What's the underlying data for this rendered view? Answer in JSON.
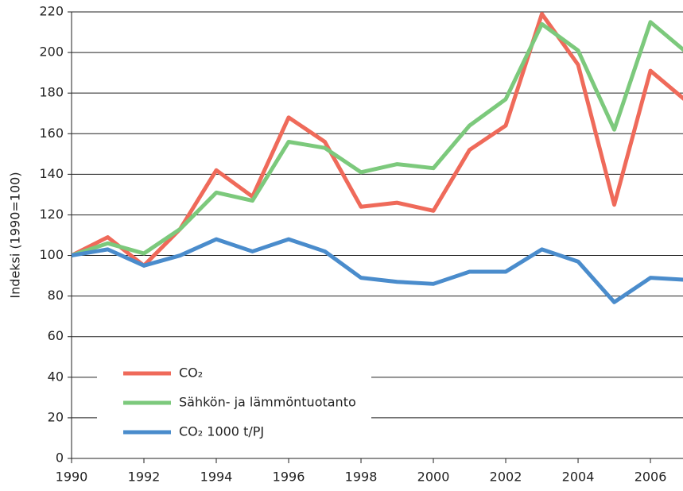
{
  "chart_data": {
    "type": "line",
    "y_label": "Indeksi (1990=100)",
    "x": [
      1990,
      1991,
      1992,
      1993,
      1994,
      1995,
      1996,
      1997,
      1998,
      1999,
      2000,
      2001,
      2002,
      2003,
      2004,
      2005,
      2006,
      2007
    ],
    "series": [
      {
        "name": "CO₂",
        "color": "#ef6a5a",
        "values": [
          100,
          109,
          95,
          113,
          142,
          129,
          168,
          156,
          124,
          126,
          122,
          152,
          164,
          219,
          194,
          125,
          191,
          176
        ]
      },
      {
        "name": "Sähkön- ja lämmöntuotanto",
        "color": "#7cc97c",
        "values": [
          100,
          106,
          101,
          113,
          131,
          127,
          156,
          153,
          141,
          145,
          143,
          164,
          177,
          214,
          201,
          162,
          215,
          200
        ]
      },
      {
        "name": "CO₂ 1000 t/PJ",
        "color": "#4a8ccc",
        "values": [
          100,
          103,
          95,
          100,
          108,
          102,
          108,
          102,
          89,
          87,
          86,
          92,
          92,
          103,
          97,
          77,
          89,
          88
        ]
      }
    ],
    "xlim": [
      1990,
      2006.9
    ],
    "xticks": [
      1990,
      1992,
      1994,
      1996,
      1998,
      2000,
      2002,
      2004,
      2006
    ],
    "ylim": [
      0,
      220
    ],
    "yticks": [
      0,
      20,
      40,
      60,
      80,
      100,
      120,
      140,
      160,
      180,
      200,
      220
    ],
    "grid": true
  }
}
